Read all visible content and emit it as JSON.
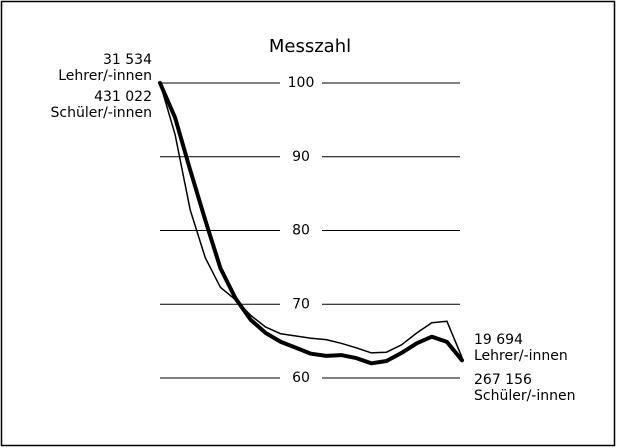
{
  "chart_data": {
    "type": "line",
    "title": "Messzahl",
    "categories": [
      null,
      null,
      null,
      null,
      null,
      null,
      null,
      null,
      null,
      null,
      null,
      null,
      null,
      null,
      null,
      null,
      null,
      null,
      null,
      null,
      null
    ],
    "series": [
      {
        "color": "#000000",
        "width": 1.5,
        "values": [
          100,
          93,
          82.8,
          76.3,
          72.3,
          70.6,
          68.5,
          66.9,
          66,
          65.7,
          65.4,
          65.2,
          64.7,
          64.1,
          63.4,
          63.5,
          64.5,
          66.1,
          67.5,
          67.7,
          62.8
        ]
      },
      {
        "color": "#000000",
        "width": 4,
        "values": [
          100,
          95.3,
          88.2,
          81.4,
          74.9,
          70.8,
          67.9,
          66.1,
          64.9,
          64.1,
          63.3,
          63,
          63.1,
          62.7,
          62,
          62.3,
          63.4,
          64.7,
          65.6,
          64.9,
          62.4
        ]
      }
    ],
    "ylim": [
      60,
      100
    ],
    "yticks": [
      60,
      70,
      80,
      90,
      100
    ],
    "grid": true,
    "annotations": [
      "31 534",
      "Lehrer/-innen",
      "431 022",
      "Schüler/-innen",
      "19 694",
      "Lehrer/-innen",
      "267 156",
      "Schüler/-innen"
    ]
  }
}
